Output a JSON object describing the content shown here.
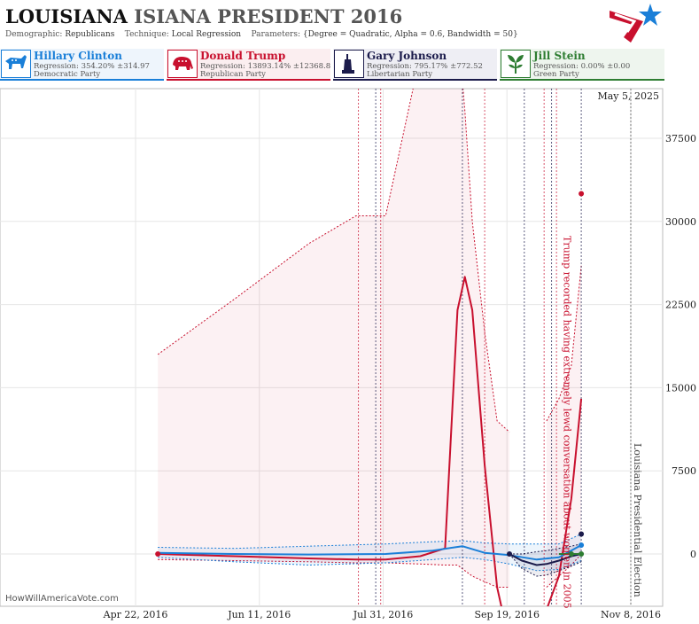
{
  "header": {
    "title_main": "LOUISIANA",
    "title_rest": "ISIANA PRESIDENT 2016",
    "demographic_label": "Demographic:",
    "demographic_value": "Republicans",
    "technique_label": "Technique:",
    "technique_value": "Local Regression",
    "parameters_label": "Parameters:",
    "parameters_value": "{Degree = Quadratic, Alpha = 0.6, Bandwidth = 50}"
  },
  "legend": [
    {
      "name": "Hillary Clinton",
      "regression": "Regression: 354.20% ±314.97",
      "party": "Democratic Party",
      "color": "#1a7fd8",
      "icon": "donkey-icon"
    },
    {
      "name": "Donald Trump",
      "regression": "Regression: 13893.14% ±12368.84",
      "party": "Republican Party",
      "color": "#c8102e",
      "icon": "elephant-icon"
    },
    {
      "name": "Gary Johnson",
      "regression": "Regression: 795.17% ±772.52",
      "party": "Libertarian Party",
      "color": "#1b1b4b",
      "icon": "liberty-statue-icon"
    },
    {
      "name": "Jill Stein",
      "regression": "Regression: 0.00% ±0.00",
      "party": "Green Party",
      "color": "#2e7d32",
      "icon": "leaf-icon"
    }
  ],
  "date_stamp": "May 5, 2025",
  "watermark": "HowWillAmericaVote.com",
  "chart_data": {
    "type": "line",
    "x_ticks": [
      "Apr 22, 2016",
      "Jun 11, 2016",
      "Jul 31, 2016",
      "Sep 19, 2016",
      "Nov 8, 2016"
    ],
    "y_ticks": [
      0,
      7500,
      15000,
      22500,
      30000,
      37500
    ],
    "ylim": [
      -2500,
      40000
    ],
    "grid": true,
    "annotations": [
      {
        "text": "Trump recorded having extremely lewd conversation about women in 2005",
        "date": "Oct 7, 2016"
      },
      {
        "text": "Louisiana Presidential Election",
        "date": "Nov 8, 2016"
      }
    ],
    "series": [
      {
        "name": "Donald Trump",
        "x": [
          "May 1, 2016",
          "Jun 1, 2016",
          "Jul 1, 2016",
          "Jul 20, 2016",
          "Aug 1, 2016",
          "Aug 15, 2016",
          "Aug 25, 2016",
          "Aug 30, 2016",
          "Sep 2, 2016",
          "Sep 5, 2016",
          "Sep 10, 2016",
          "Sep 15, 2016",
          "Sep 20, 2016"
        ],
        "y": [
          0,
          -200,
          -400,
          -500,
          -500,
          -200,
          500,
          22000,
          25000,
          22000,
          8000,
          -3000,
          -8000
        ],
        "upper": [
          18000,
          23000,
          28000,
          30500,
          30500,
          45000,
          48000,
          48000,
          40000,
          30000,
          20000,
          12000,
          11000
        ],
        "lower": [
          -500,
          -600,
          -700,
          -800,
          -800,
          -900,
          -1000,
          -1000,
          -1500,
          -2000,
          -2500,
          -3000,
          -3000
        ]
      },
      {
        "name": "Donald Trump (late)",
        "x": [
          "Oct 5, 2016",
          "Oct 10, 2016",
          "Oct 15, 2016",
          "Oct 19, 2016"
        ],
        "y": [
          -5000,
          -2000,
          5000,
          14000
        ],
        "upper": [
          12000,
          14000,
          17000,
          26000
        ],
        "lower": [
          -3000,
          -2000,
          -1000,
          0
        ]
      },
      {
        "name": "Hillary Clinton",
        "x": [
          "May 1, 2016",
          "Jun 1, 2016",
          "Jul 1, 2016",
          "Aug 1, 2016",
          "Aug 20, 2016",
          "Sep 1, 2016",
          "Sep 10, 2016",
          "Sep 20, 2016",
          "Oct 1, 2016",
          "Oct 10, 2016",
          "Oct 19, 2016"
        ],
        "y": [
          100,
          0,
          -50,
          0,
          300,
          700,
          100,
          -100,
          -500,
          -300,
          800
        ],
        "upper": [
          600,
          500,
          700,
          900,
          1100,
          1200,
          1000,
          900,
          900,
          900,
          1800
        ],
        "lower": [
          -300,
          -700,
          -1000,
          -800,
          -500,
          -300,
          -500,
          -900,
          -1500,
          -1400,
          -600
        ]
      },
      {
        "name": "Gary Johnson",
        "x": [
          "Sep 20, 2016",
          "Sep 25, 2016",
          "Oct 1, 2016",
          "Oct 5, 2016",
          "Oct 10, 2016",
          "Oct 15, 2016",
          "Oct 19, 2016"
        ],
        "y": [
          0,
          -600,
          -1000,
          -900,
          -600,
          -200,
          0
        ],
        "upper": [
          0,
          0,
          200,
          300,
          500,
          700,
          900
        ],
        "lower": [
          0,
          -1300,
          -2000,
          -1900,
          -1500,
          -1100,
          -700
        ]
      },
      {
        "name": "Jill Stein",
        "x": [
          "Oct 10, 2016",
          "Oct 19, 2016"
        ],
        "y": [
          0,
          0
        ]
      }
    ],
    "points": [
      {
        "series": "Donald Trump",
        "x": "Oct 19, 2016",
        "y": 32500
      },
      {
        "series": "Donald Trump",
        "x": "May 1, 2016",
        "y": 0
      },
      {
        "series": "Gary Johnson",
        "x": "Oct 19, 2016",
        "y": 1800
      },
      {
        "series": "Hillary Clinton",
        "x": "Oct 19, 2016",
        "y": 800
      },
      {
        "series": "Gary Johnson",
        "x": "Sep 20, 2016",
        "y": 0
      },
      {
        "series": "Jill Stein",
        "x": "Oct 15, 2016",
        "y": 0
      },
      {
        "series": "Jill Stein",
        "x": "Oct 19, 2016",
        "y": 0
      }
    ],
    "event_dates": [
      "Jul 21, 2016",
      "Jul 28, 2016",
      "Jul 30, 2016",
      "Sep 1, 2016",
      "Sep 10, 2016",
      "Sep 26, 2016",
      "Oct 4, 2016",
      "Oct 7, 2016",
      "Oct 9, 2016",
      "Oct 19, 2016",
      "Nov 8, 2016"
    ]
  }
}
